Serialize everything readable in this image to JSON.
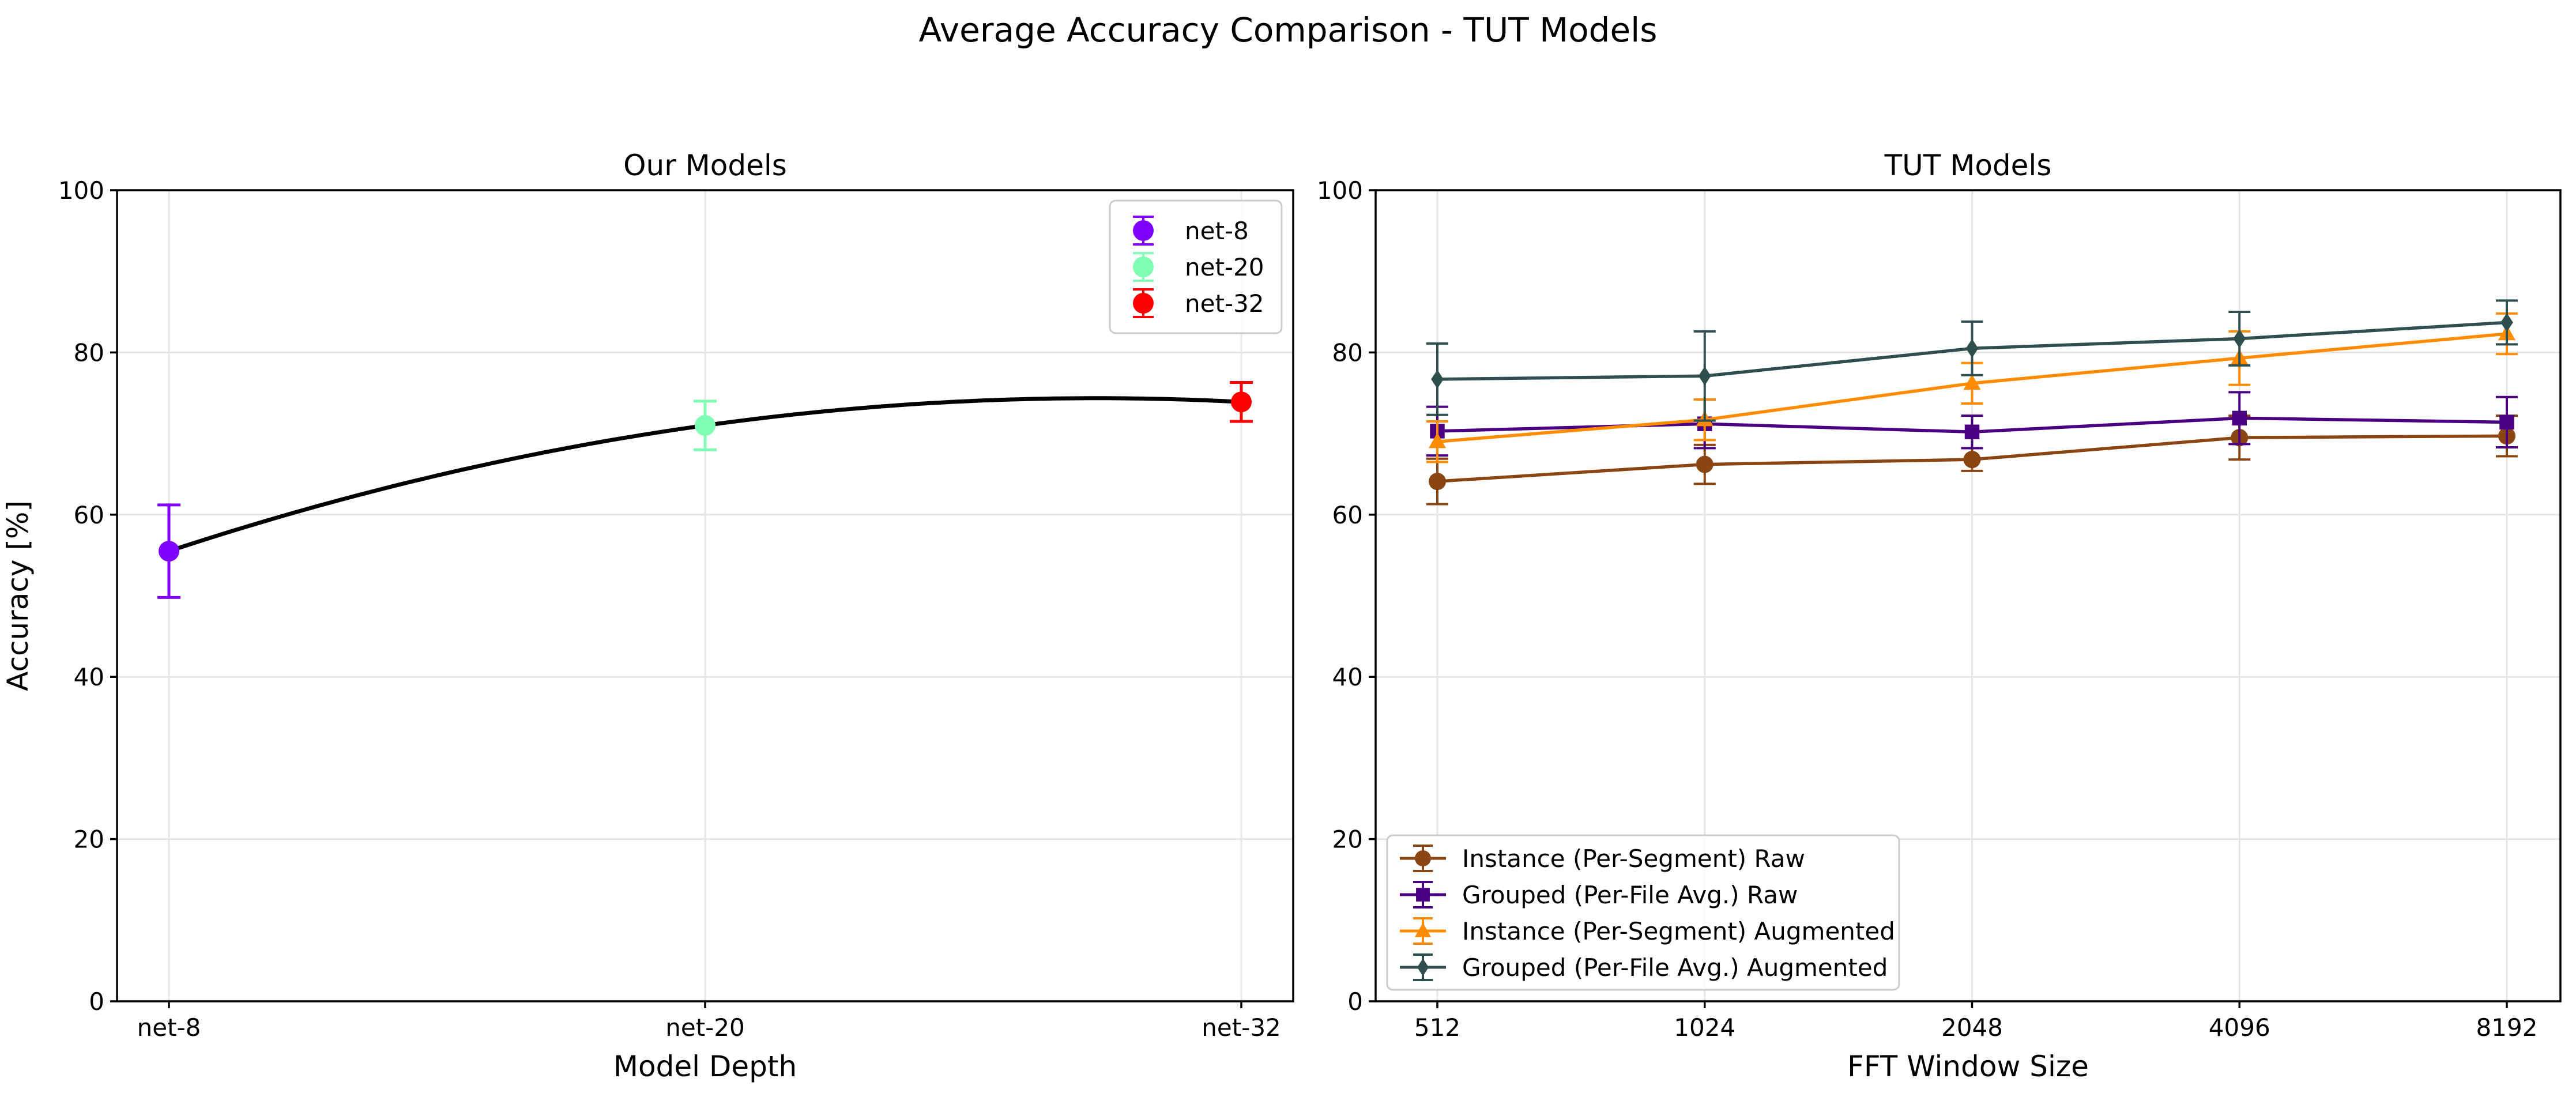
{
  "figure": {
    "suptitle": "Average Accuracy Comparison - TUT Models"
  },
  "chart_data": [
    {
      "type": "scatter",
      "title": "Our Models",
      "xlabel": "Model Depth",
      "ylabel": "Accuracy [%]",
      "ylim": [
        0,
        100
      ],
      "yticks": [
        0,
        20,
        40,
        60,
        80,
        100
      ],
      "categories": [
        "net-8",
        "net-20",
        "net-32"
      ],
      "grid": true,
      "legend_position": "top-right",
      "trend_line": {
        "style": "smooth-curve",
        "color": "#000000"
      },
      "series": [
        {
          "name": "net-8",
          "category": "net-8",
          "value": 55.5,
          "err_low": 49.8,
          "err_high": 61.2,
          "color": "#7f00ff"
        },
        {
          "name": "net-20",
          "category": "net-20",
          "value": 71.0,
          "err_low": 68.0,
          "err_high": 74.0,
          "color": "#80ffb4"
        },
        {
          "name": "net-32",
          "category": "net-32",
          "value": 73.9,
          "err_low": 71.5,
          "err_high": 76.3,
          "color": "#ff0000"
        }
      ]
    },
    {
      "type": "line",
      "title": "TUT Models",
      "xlabel": "FFT Window Size",
      "ylabel": "",
      "ylim": [
        0,
        100
      ],
      "yticks": [
        0,
        20,
        40,
        60,
        80,
        100
      ],
      "categories": [
        "512",
        "1024",
        "2048",
        "4096",
        "8192"
      ],
      "grid": true,
      "legend_position": "bottom-left",
      "series": [
        {
          "name": "Instance (Per-Segment) Raw",
          "color": "#8b4513",
          "marker": "circle",
          "values": [
            64.1,
            66.2,
            66.8,
            69.5,
            69.7
          ],
          "err_low": [
            61.3,
            63.8,
            65.4,
            66.8,
            67.2
          ],
          "err_high": [
            66.9,
            68.6,
            68.2,
            72.2,
            72.2
          ]
        },
        {
          "name": "Grouped (Per-File Avg.) Raw",
          "color": "#4b0082",
          "marker": "square",
          "values": [
            70.3,
            71.2,
            70.2,
            71.9,
            71.4
          ],
          "err_low": [
            67.3,
            68.2,
            68.2,
            68.7,
            68.3
          ],
          "err_high": [
            73.3,
            74.2,
            72.2,
            75.1,
            74.5
          ]
        },
        {
          "name": "Instance (Per-Segment) Augmented",
          "color": "#ff8c00",
          "marker": "triangle",
          "values": [
            69.0,
            71.7,
            76.2,
            79.3,
            82.3
          ],
          "err_low": [
            66.5,
            69.2,
            73.7,
            76.0,
            79.8
          ],
          "err_high": [
            71.5,
            74.2,
            78.7,
            82.6,
            84.8
          ]
        },
        {
          "name": "Grouped (Per-File Avg.) Augmented",
          "color": "#2f4f4f",
          "marker": "diamond",
          "values": [
            76.7,
            77.1,
            80.5,
            81.7,
            83.7
          ],
          "err_low": [
            72.3,
            71.6,
            77.2,
            78.4,
            81.0
          ],
          "err_high": [
            81.1,
            82.6,
            83.8,
            85.0,
            86.4
          ]
        }
      ]
    }
  ]
}
